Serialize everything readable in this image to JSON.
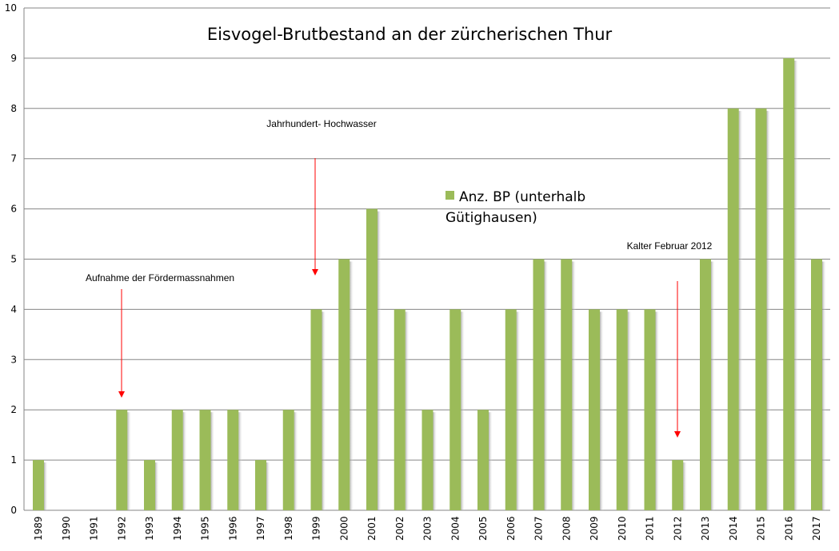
{
  "chart_data": {
    "type": "bar",
    "title": "Eisvogel-Brutbestand an der zürcherischen Thur",
    "xlabel": "",
    "ylabel": "",
    "ylim": [
      0,
      10
    ],
    "yticks": [
      0,
      1,
      2,
      3,
      4,
      5,
      6,
      7,
      8,
      9,
      10
    ],
    "grid": true,
    "legend_position": "center",
    "categories": [
      "1989",
      "1990",
      "1991",
      "1992",
      "1993",
      "1994",
      "1995",
      "1996",
      "1997",
      "1998",
      "1999",
      "2000",
      "2001",
      "2002",
      "2003",
      "2004",
      "2005",
      "2006",
      "2007",
      "2008",
      "2009",
      "2010",
      "2011",
      "2012",
      "2013",
      "2014",
      "2015",
      "2016",
      "2017"
    ],
    "series": [
      {
        "name": "Anz. BP (unterhalb Gütighausen)",
        "legend_lines": [
          "Anz. BP (unterhalb",
          "Gütighausen)"
        ],
        "color": "#9bbb59",
        "values": [
          1,
          0,
          0,
          2,
          1,
          2,
          2,
          2,
          1,
          2,
          4,
          5,
          6,
          4,
          2,
          4,
          2,
          4,
          5,
          5,
          4,
          4,
          4,
          1,
          5,
          8,
          8,
          9,
          5
        ]
      }
    ],
    "annotations": [
      {
        "text": "Aufnahme der Fördermassnahmen",
        "target_category": "1992",
        "arrow_color": "#ff0000"
      },
      {
        "text": "Jahrhundert- Hochwasser",
        "target_category": "1999",
        "arrow_color": "#ff0000"
      },
      {
        "text": "Kalter Februar 2012",
        "target_category": "2012",
        "arrow_color": "#ff0000"
      }
    ]
  }
}
